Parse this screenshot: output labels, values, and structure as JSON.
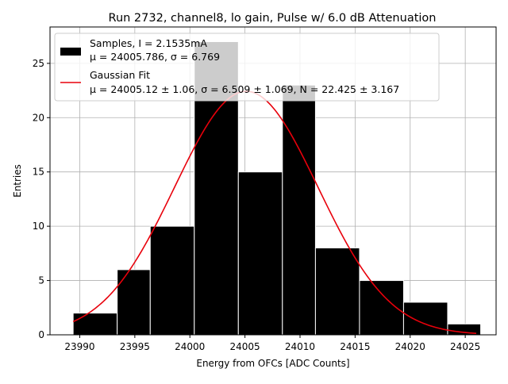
{
  "chart_data": {
    "type": "bar",
    "title": "Run 2732, channel8, lo gain, Pulse w/ 6.0 dB Attenuation",
    "xlabel": "Energy from OFCs [ADC Counts]",
    "ylabel": "Entries",
    "xlim": [
      23987.3,
      24027.8
    ],
    "ylim": [
      0,
      28.35
    ],
    "xticks": [
      23990,
      23995,
      24000,
      24005,
      24010,
      24015,
      24020,
      24025
    ],
    "yticks": [
      0,
      5,
      10,
      15,
      20,
      25
    ],
    "grid": true,
    "legend_position": "top-left",
    "bins": [
      {
        "x0": 23989.4,
        "x1": 23993.4,
        "count": 2
      },
      {
        "x0": 23993.4,
        "x1": 23996.4,
        "count": 6
      },
      {
        "x0": 23996.4,
        "x1": 24000.4,
        "count": 10
      },
      {
        "x0": 24000.4,
        "x1": 24004.4,
        "count": 27
      },
      {
        "x0": 24004.4,
        "x1": 24008.4,
        "count": 15
      },
      {
        "x0": 24008.4,
        "x1": 24011.4,
        "count": 23
      },
      {
        "x0": 24011.4,
        "x1": 24015.4,
        "count": 8
      },
      {
        "x0": 24015.4,
        "x1": 24019.4,
        "count": 5
      },
      {
        "x0": 24019.4,
        "x1": 24023.4,
        "count": 3
      },
      {
        "x0": 24023.4,
        "x1": 24026.4,
        "count": 1
      }
    ],
    "series": [
      {
        "name": "Samples, I = 2.1535mA",
        "stats": "μ = 24005.786, σ = 6.769",
        "color": "#000000",
        "kind": "histogram"
      },
      {
        "name": "Gaussian Fit",
        "stats": "μ = 24005.12 ± 1.06, σ = 6.509 ± 1.069, N = 22.425 ± 3.167",
        "color": "#e8000b",
        "kind": "line",
        "mu": 24005.12,
        "sigma": 6.509,
        "amplitude": 22.425,
        "range": [
          23989.4,
          24026.0
        ]
      }
    ]
  }
}
